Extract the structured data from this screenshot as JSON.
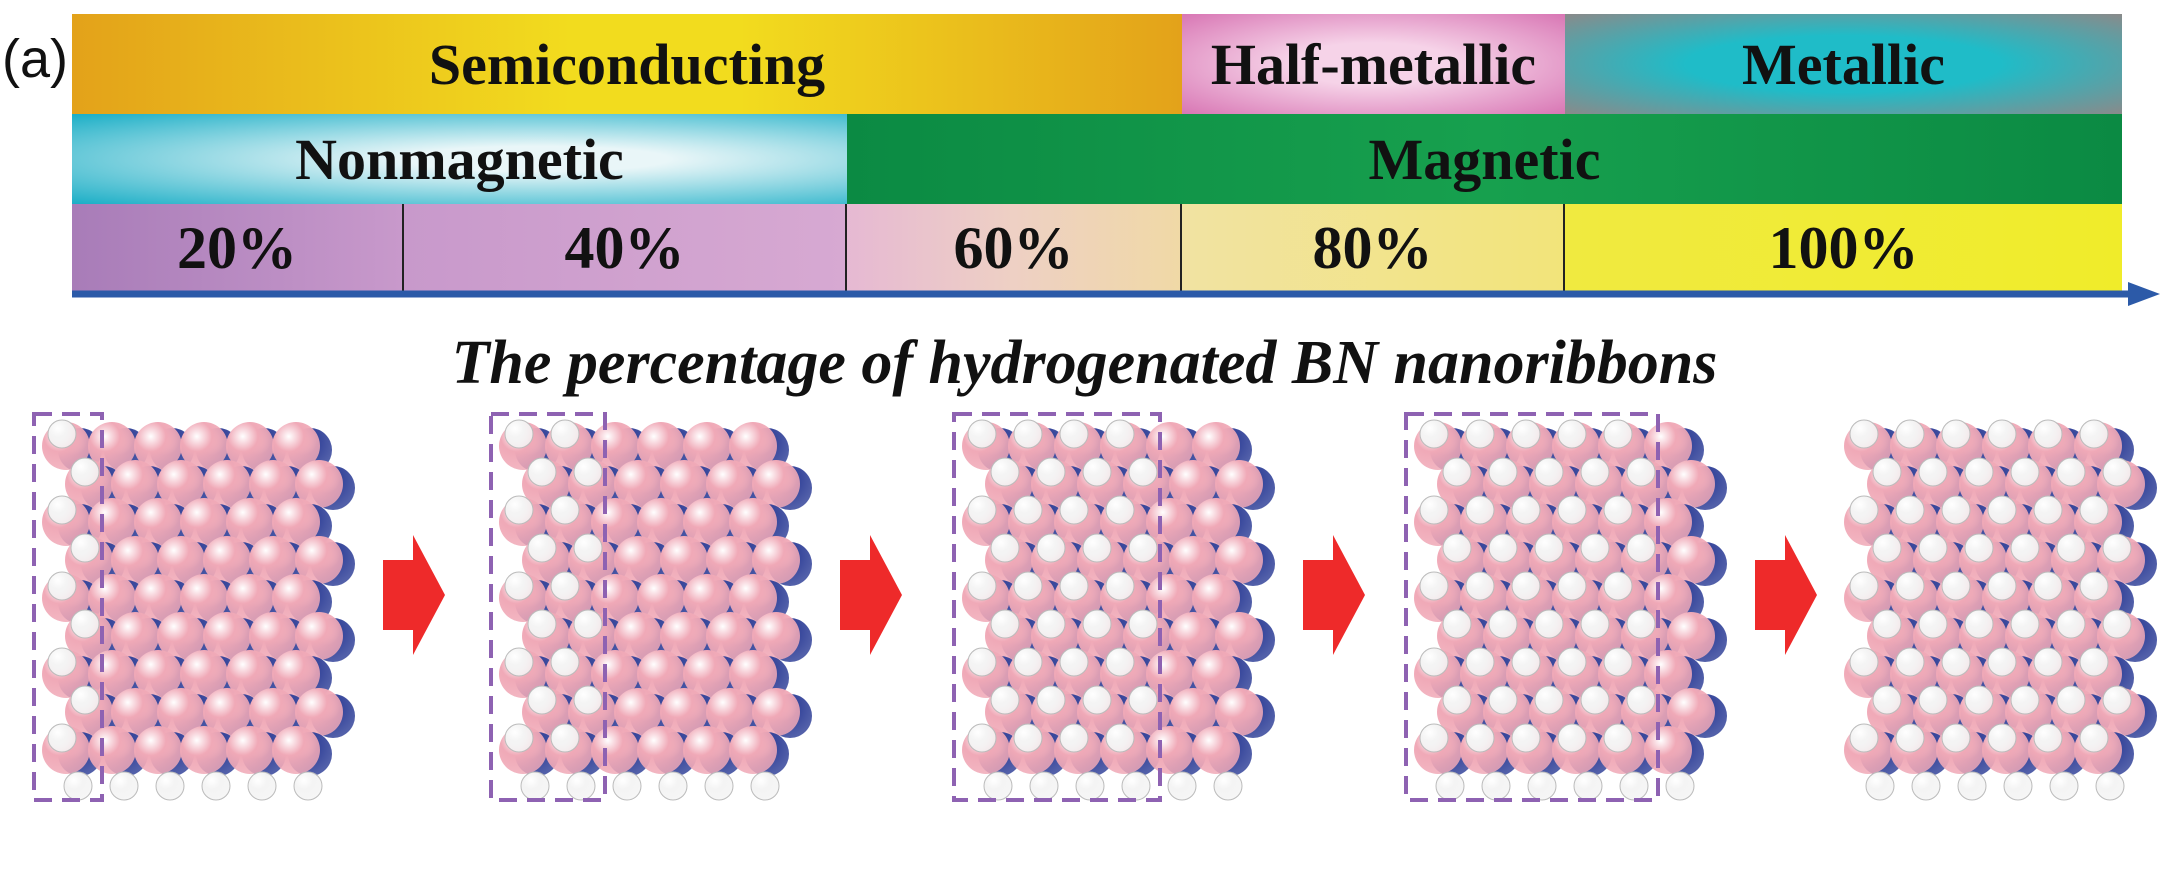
{
  "panel_label": "(a)",
  "electronic_row": [
    {
      "label": "Semiconducting",
      "color": "#e3a21a",
      "accent": "#f2dc1e"
    },
    {
      "label": "Half-metallic",
      "color": "#d876b4",
      "accent": "#f6d3e8"
    },
    {
      "label": "Metallic",
      "color": "#8a8a8a",
      "accent": "#1fbcc8"
    }
  ],
  "magnetic_row": [
    {
      "label": "Nonmagnetic",
      "color": "#1aaec6",
      "accent": "#e9f6f8"
    },
    {
      "label": "Magnetic",
      "color": "#0b8a43",
      "accent": "#17a04e"
    }
  ],
  "percent_row": [
    "20%",
    "40%",
    "60%",
    "80%",
    "100%"
  ],
  "percent_colors": [
    "#a87cb8",
    "#c899cb",
    "#eed0c4",
    "#f1e3a2",
    "#f0ec2a"
  ],
  "axis_color": "#2c5aa8",
  "caption": "The percentage of hydrogenated BN nanoribbons",
  "atom_colors": {
    "boron": "#f0a9b7",
    "nitrogen": "#34449a",
    "hydrogen": "#f4f4f4"
  },
  "arrow_color": "#ee2a2a",
  "box_color": "#8e62b2"
}
